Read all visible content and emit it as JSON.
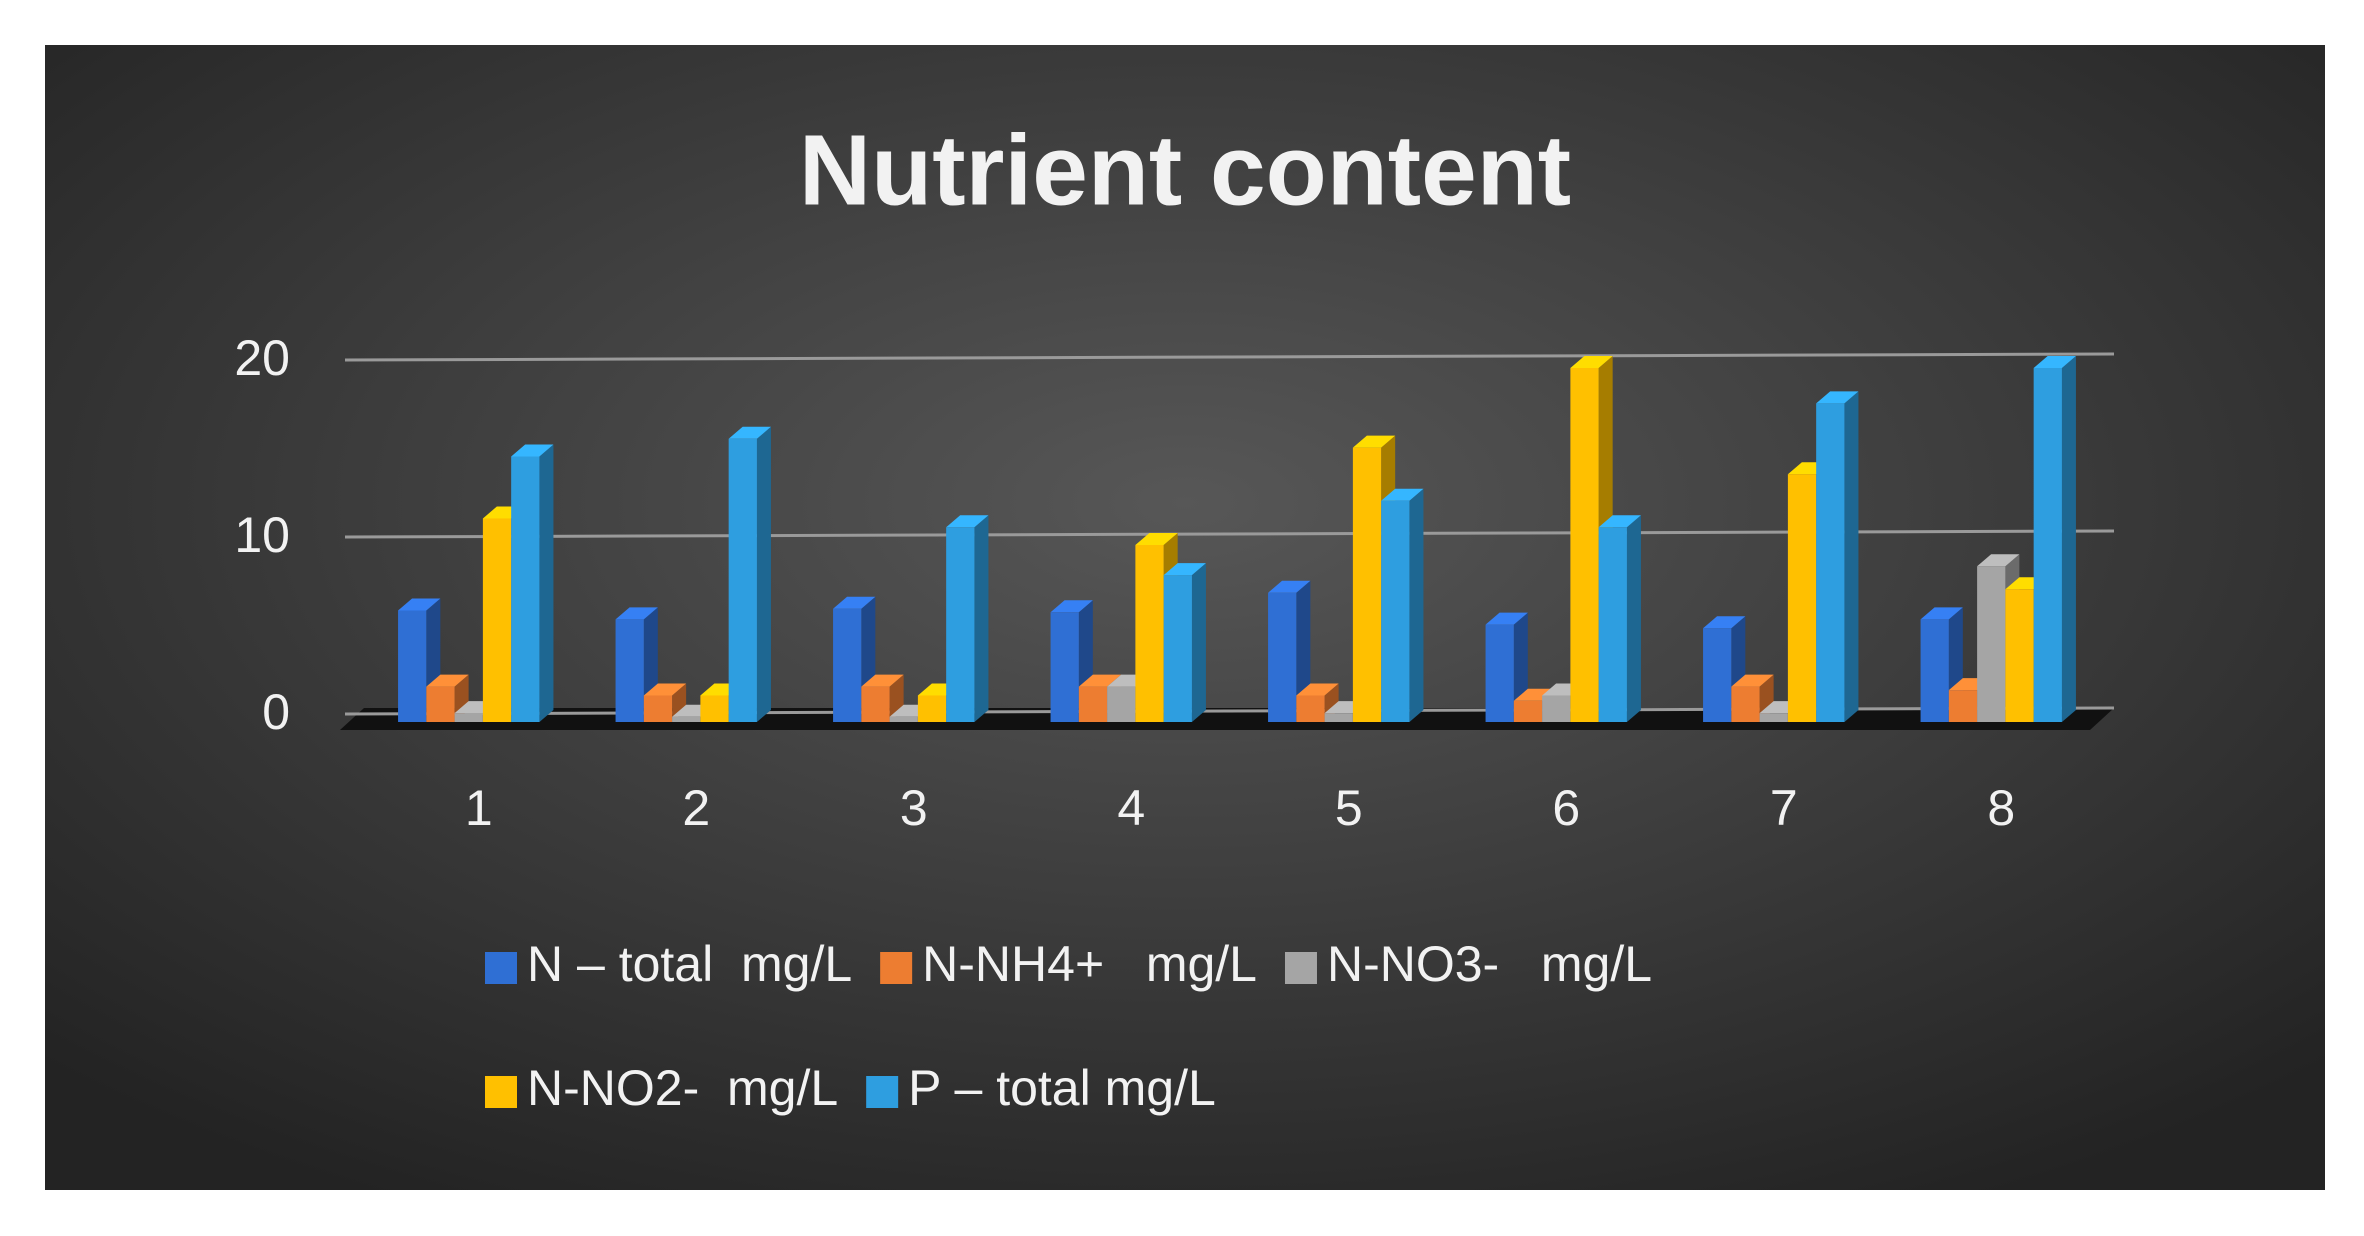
{
  "chart_data": {
    "type": "bar",
    "title": "Nutrient content",
    "categories": [
      "1",
      "2",
      "3",
      "4",
      "5",
      "6",
      "7",
      "8"
    ],
    "series": [
      {
        "name": "N – total  mg/L",
        "color": "#2f6fd4",
        "values": [
          6.3,
          5.8,
          6.4,
          6.2,
          7.3,
          5.5,
          5.3,
          5.8
        ]
      },
      {
        "name": "N-NH4+   mg/L",
        "color": "#ed7d31",
        "values": [
          2.0,
          1.5,
          2.0,
          2.0,
          1.5,
          1.2,
          2.0,
          1.8
        ]
      },
      {
        "name": "N-NO3-   mg/L",
        "color": "#a5a5a5",
        "values": [
          0.5,
          0.3,
          0.3,
          2.0,
          0.5,
          1.5,
          0.5,
          8.8
        ]
      },
      {
        "name": "N-NO2-  mg/L",
        "color": "#ffc000",
        "values": [
          11.5,
          1.5,
          1.5,
          10.0,
          15.5,
          20.0,
          14.0,
          7.5
        ]
      },
      {
        "name": "P – total mg/L",
        "color": "#2e9ee0",
        "values": [
          15.0,
          16.0,
          11.0,
          8.3,
          12.5,
          11.0,
          18.0,
          20.0
        ]
      }
    ],
    "ylim": [
      0,
      20
    ],
    "yticks": [
      0,
      10,
      20
    ],
    "grid": true
  }
}
